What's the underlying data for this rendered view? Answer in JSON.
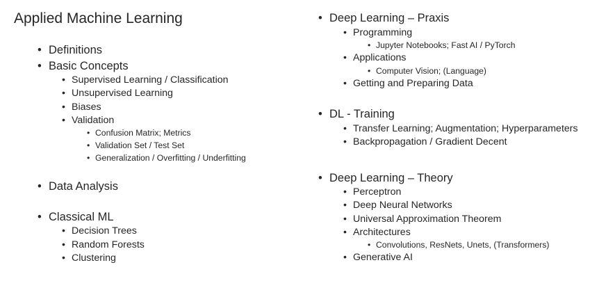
{
  "title": "Applied Machine Learning",
  "left": {
    "definitions": "Definitions",
    "basic_concepts": "Basic Concepts",
    "supervised": "Supervised Learning / Classification",
    "unsupervised": "Unsupervised Learning",
    "biases": "Biases",
    "validation": "Validation",
    "confusion": "Confusion Matrix; Metrics",
    "val_test": "Validation Set / Test Set",
    "generalization": "Generalization / Overfitting / Underfitting",
    "data_analysis": "Data Analysis",
    "classical_ml": "Classical ML",
    "decision_trees": "Decision Trees",
    "random_forests": "Random Forests",
    "clustering": "Clustering"
  },
  "right": {
    "praxis": "Deep Learning – Praxis",
    "programming": "Programming",
    "jupyter": "Jupyter Notebooks; Fast AI / PyTorch",
    "applications": "Applications",
    "cv": "Computer Vision; (Language)",
    "getting_data": "Getting and Preparing Data",
    "dl_training": "DL - Training",
    "transfer": "Transfer Learning; Augmentation; Hyperparameters",
    "backprop": "Backpropagation / Gradient Decent",
    "theory": "Deep Learning – Theory",
    "perceptron": "Perceptron",
    "dnn": "Deep Neural Networks",
    "uat": "Universal Approximation Theorem",
    "architectures": "Architectures",
    "convs": "Convolutions, ResNets, Unets, (Transformers)",
    "generative": "Generative AI"
  }
}
